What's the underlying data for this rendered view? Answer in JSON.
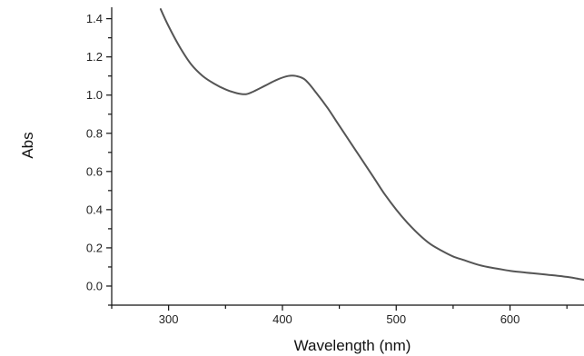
{
  "chart_data": {
    "type": "line",
    "title": "",
    "xlabel": "Wavelength (nm)",
    "ylabel": "Abs",
    "xlim": [
      250,
      665
    ],
    "ylim": [
      -0.1,
      1.46
    ],
    "x_ticks": [
      300,
      400,
      500,
      600
    ],
    "y_ticks": [
      0.0,
      0.2,
      0.4,
      0.6,
      0.8,
      1.0,
      1.2,
      1.4
    ],
    "x_tick_labels": [
      "300",
      "400",
      "500",
      "600"
    ],
    "y_tick_labels": [
      "0.0",
      "0.2",
      "0.4",
      "0.6",
      "0.8",
      "1.0",
      "1.2",
      "1.4"
    ],
    "grid": false,
    "line_color": "#555555",
    "series": [
      {
        "x": [
          293,
          300,
          310,
          320,
          330,
          340,
          350,
          360,
          368,
          375,
          385,
          395,
          405,
          412,
          420,
          430,
          440,
          450,
          460,
          470,
          480,
          490,
          500,
          510,
          520,
          530,
          540,
          550,
          560,
          570,
          580,
          590,
          600,
          610,
          620,
          630,
          640,
          650,
          660,
          665
        ],
        "y": [
          1.45,
          1.36,
          1.25,
          1.16,
          1.1,
          1.06,
          1.03,
          1.01,
          1.005,
          1.02,
          1.05,
          1.08,
          1.1,
          1.1,
          1.08,
          1.01,
          0.93,
          0.84,
          0.75,
          0.66,
          0.57,
          0.48,
          0.4,
          0.33,
          0.27,
          0.22,
          0.185,
          0.155,
          0.135,
          0.115,
          0.1,
          0.09,
          0.08,
          0.073,
          0.067,
          0.061,
          0.055,
          0.048,
          0.038,
          0.032
        ]
      }
    ]
  }
}
